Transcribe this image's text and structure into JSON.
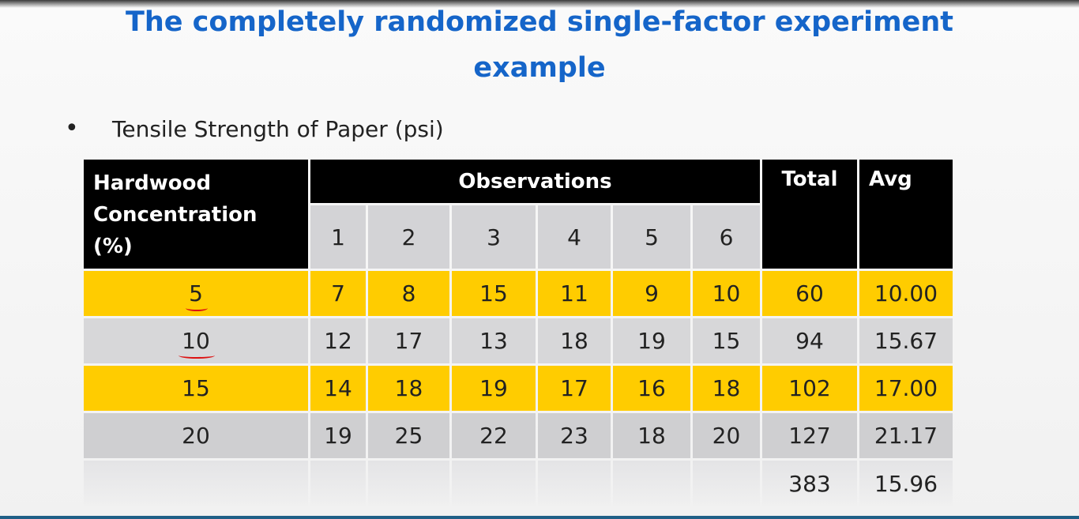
{
  "title_line1": "The completely randomized single-factor experiment",
  "title_line2": "example",
  "bullet_char": "•",
  "subtitle": "Tensile Strength of Paper (psi)",
  "table": {
    "header_factor": "Hardwood Concentration (%)",
    "header_observations": "Observations",
    "header_total": "Total",
    "header_avg": "Avg",
    "obs_numbers": [
      "1",
      "2",
      "3",
      "4",
      "5",
      "6"
    ],
    "rows": [
      {
        "level": "5",
        "obs": [
          "7",
          "8",
          "15",
          "11",
          "9",
          "10"
        ],
        "total": "60",
        "avg": "10.00"
      },
      {
        "level": "10",
        "obs": [
          "12",
          "17",
          "13",
          "18",
          "19",
          "15"
        ],
        "total": "94",
        "avg": "15.67"
      },
      {
        "level": "15",
        "obs": [
          "14",
          "18",
          "19",
          "17",
          "16",
          "18"
        ],
        "total": "102",
        "avg": "17.00"
      },
      {
        "level": "20",
        "obs": [
          "19",
          "25",
          "22",
          "23",
          "18",
          "20"
        ],
        "total": "127",
        "avg": "21.17"
      }
    ],
    "grand_total": "383",
    "grand_avg": "15.96"
  },
  "colors": {
    "title": "#1565c9",
    "highlight_row": "#ffcc00",
    "header_bg": "#000000",
    "gray_row": "#d7d7d9"
  }
}
